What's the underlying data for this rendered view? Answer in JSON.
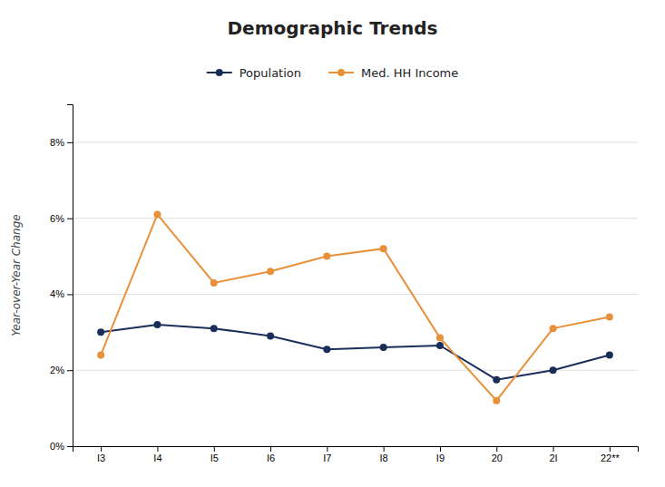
{
  "chart_data": {
    "type": "line",
    "title": "Demographic Trends",
    "ylabel": "Year-over-Year Change",
    "categories": [
      "I3",
      "I4",
      "I5",
      "I6",
      "I7",
      "I8",
      "I9",
      "20",
      "2I",
      "22**"
    ],
    "series": [
      {
        "name": "Population",
        "color": "#1a2e5a",
        "marker": "circle",
        "values": [
          3.0,
          3.2,
          3.1,
          2.9,
          2.55,
          2.6,
          2.65,
          1.75,
          2.0,
          2.4
        ]
      },
      {
        "name": "Med. HH Income",
        "color": "#E8913A",
        "marker": "circle",
        "values": [
          2.4,
          6.1,
          4.3,
          4.6,
          5.0,
          5.2,
          2.85,
          1.2,
          3.1,
          3.4
        ]
      }
    ],
    "ylim": [
      0,
      9
    ],
    "yticks": [
      {
        "value": 0,
        "label": "0%"
      },
      {
        "value": 2,
        "label": "2%"
      },
      {
        "value": 4,
        "label": "4%"
      },
      {
        "value": 6,
        "label": "6%"
      },
      {
        "value": 8,
        "label": "8%"
      }
    ],
    "grid": true,
    "legend": "top"
  }
}
